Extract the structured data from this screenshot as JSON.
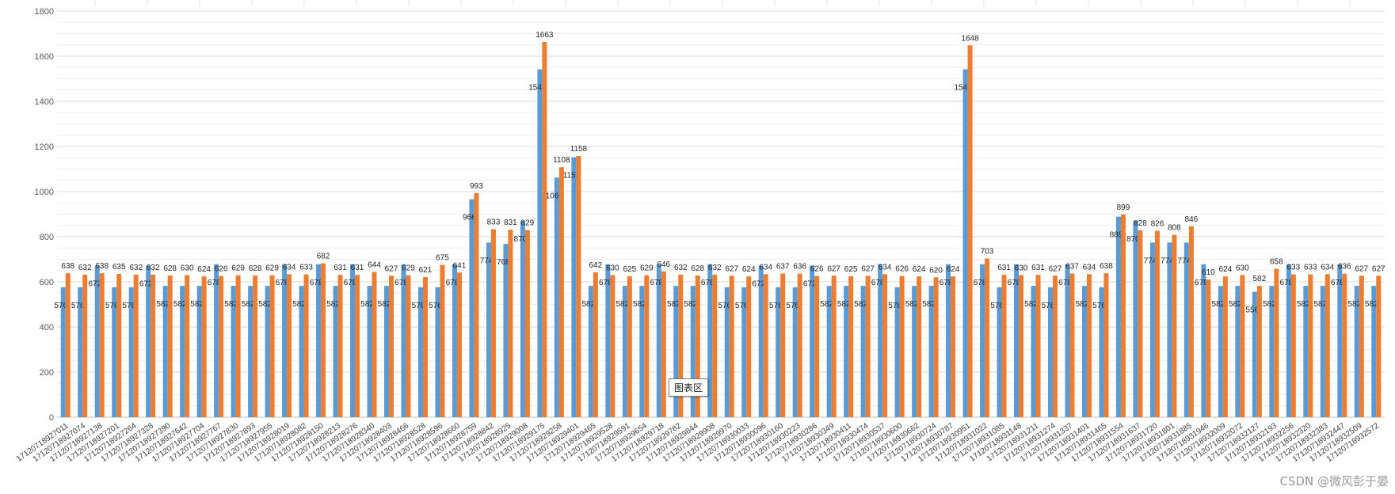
{
  "chart_data": {
    "type": "bar",
    "ylim": [
      0,
      1800
    ],
    "yticks": [
      0,
      200,
      400,
      600,
      800,
      1000,
      1200,
      1400,
      1600,
      1800
    ],
    "grid": true,
    "colors": [
      "#5b9bd5",
      "#ed7d31"
    ],
    "categories": [
      "17120718927011",
      "17120718927074",
      "17120718927138",
      "17120718927201",
      "17120718927264",
      "17120718927328",
      "17120718927390",
      "17120718927642",
      "17120718927704",
      "17120718927767",
      "17120718927830",
      "17120718927893",
      "17120718927955",
      "17120718928019",
      "17120718928082",
      "17120718928150",
      "17120718928213",
      "17120718928276",
      "17120718928340",
      "17120718928403",
      "17120718928466",
      "17120718928528",
      "17120718928596",
      "17120718928660",
      "17120718928759",
      "17120718928842",
      "17120718928925",
      "17120718929008",
      "17120718929175",
      "17120718929258",
      "17120718929401",
      "17120718929465",
      "17120718929528",
      "17120718929591",
      "17120718929654",
      "17120718929718",
      "17120718929782",
      "17120718929844",
      "17120718929908",
      "17120718929970",
      "17120718930033",
      "17120718930096",
      "17120718930160",
      "17120718930223",
      "17120718930286",
      "17120718930349",
      "17120718930411",
      "17120718930474",
      "17120718930537",
      "17120718930600",
      "17120718930662",
      "17120718930724",
      "17120718930787",
      "17120718930951",
      "17120718931022",
      "17120718931085",
      "17120718931148",
      "17120718931211",
      "17120718931274",
      "17120718931337",
      "17120718931401",
      "17120718931465",
      "17120718931554",
      "17120718931637",
      "17120718931720",
      "17120718931801",
      "17120718931885",
      "17120718931946",
      "17120718932009",
      "17120718932072",
      "17120718932127",
      "17120718932193",
      "17120718932256",
      "17120718932320",
      "17120718932383",
      "17120718932447",
      "17120718932509",
      "17120718932572"
    ],
    "series": [
      {
        "values": [
          576,
          576,
          672,
          576,
          576,
          672,
          582,
          582,
          582,
          678,
          582,
          582,
          582,
          678,
          582,
          678,
          582,
          678,
          582,
          582,
          678,
          576,
          576,
          678,
          966,
          774,
          768,
          870,
          1542,
          1062,
          1152,
          582,
          678,
          582,
          582,
          678,
          582,
          582,
          678,
          576,
          576,
          672,
          576,
          576,
          672,
          582,
          582,
          582,
          678,
          576,
          582,
          582,
          678,
          1542,
          678,
          576,
          678,
          582,
          576,
          678,
          582,
          576,
          889,
          870,
          774,
          774,
          774,
          678,
          582,
          582,
          556,
          582,
          678,
          582,
          582,
          678,
          582,
          582
        ]
      },
      {
        "values": [
          638,
          632,
          638,
          635,
          632,
          632,
          628,
          630,
          624,
          626,
          629,
          628,
          629,
          634,
          633,
          682,
          631,
          631,
          644,
          627,
          629,
          621,
          675,
          641,
          993,
          833,
          831,
          829,
          1663,
          1108,
          1158,
          642,
          630,
          625,
          629,
          646,
          632,
          628,
          632,
          627,
          624,
          634,
          637,
          636,
          626,
          627,
          625,
          627,
          634,
          626,
          624,
          620,
          624,
          1648,
          703,
          631,
          630,
          631,
          627,
          637,
          634,
          638,
          899,
          828,
          826,
          808,
          846,
          610,
          624,
          630,
          582,
          658,
          633,
          633,
          634,
          636,
          627,
          627
        ]
      }
    ]
  },
  "ui": {
    "tooltip": "图表区",
    "watermark": "CSDN @微风彭于晏"
  }
}
